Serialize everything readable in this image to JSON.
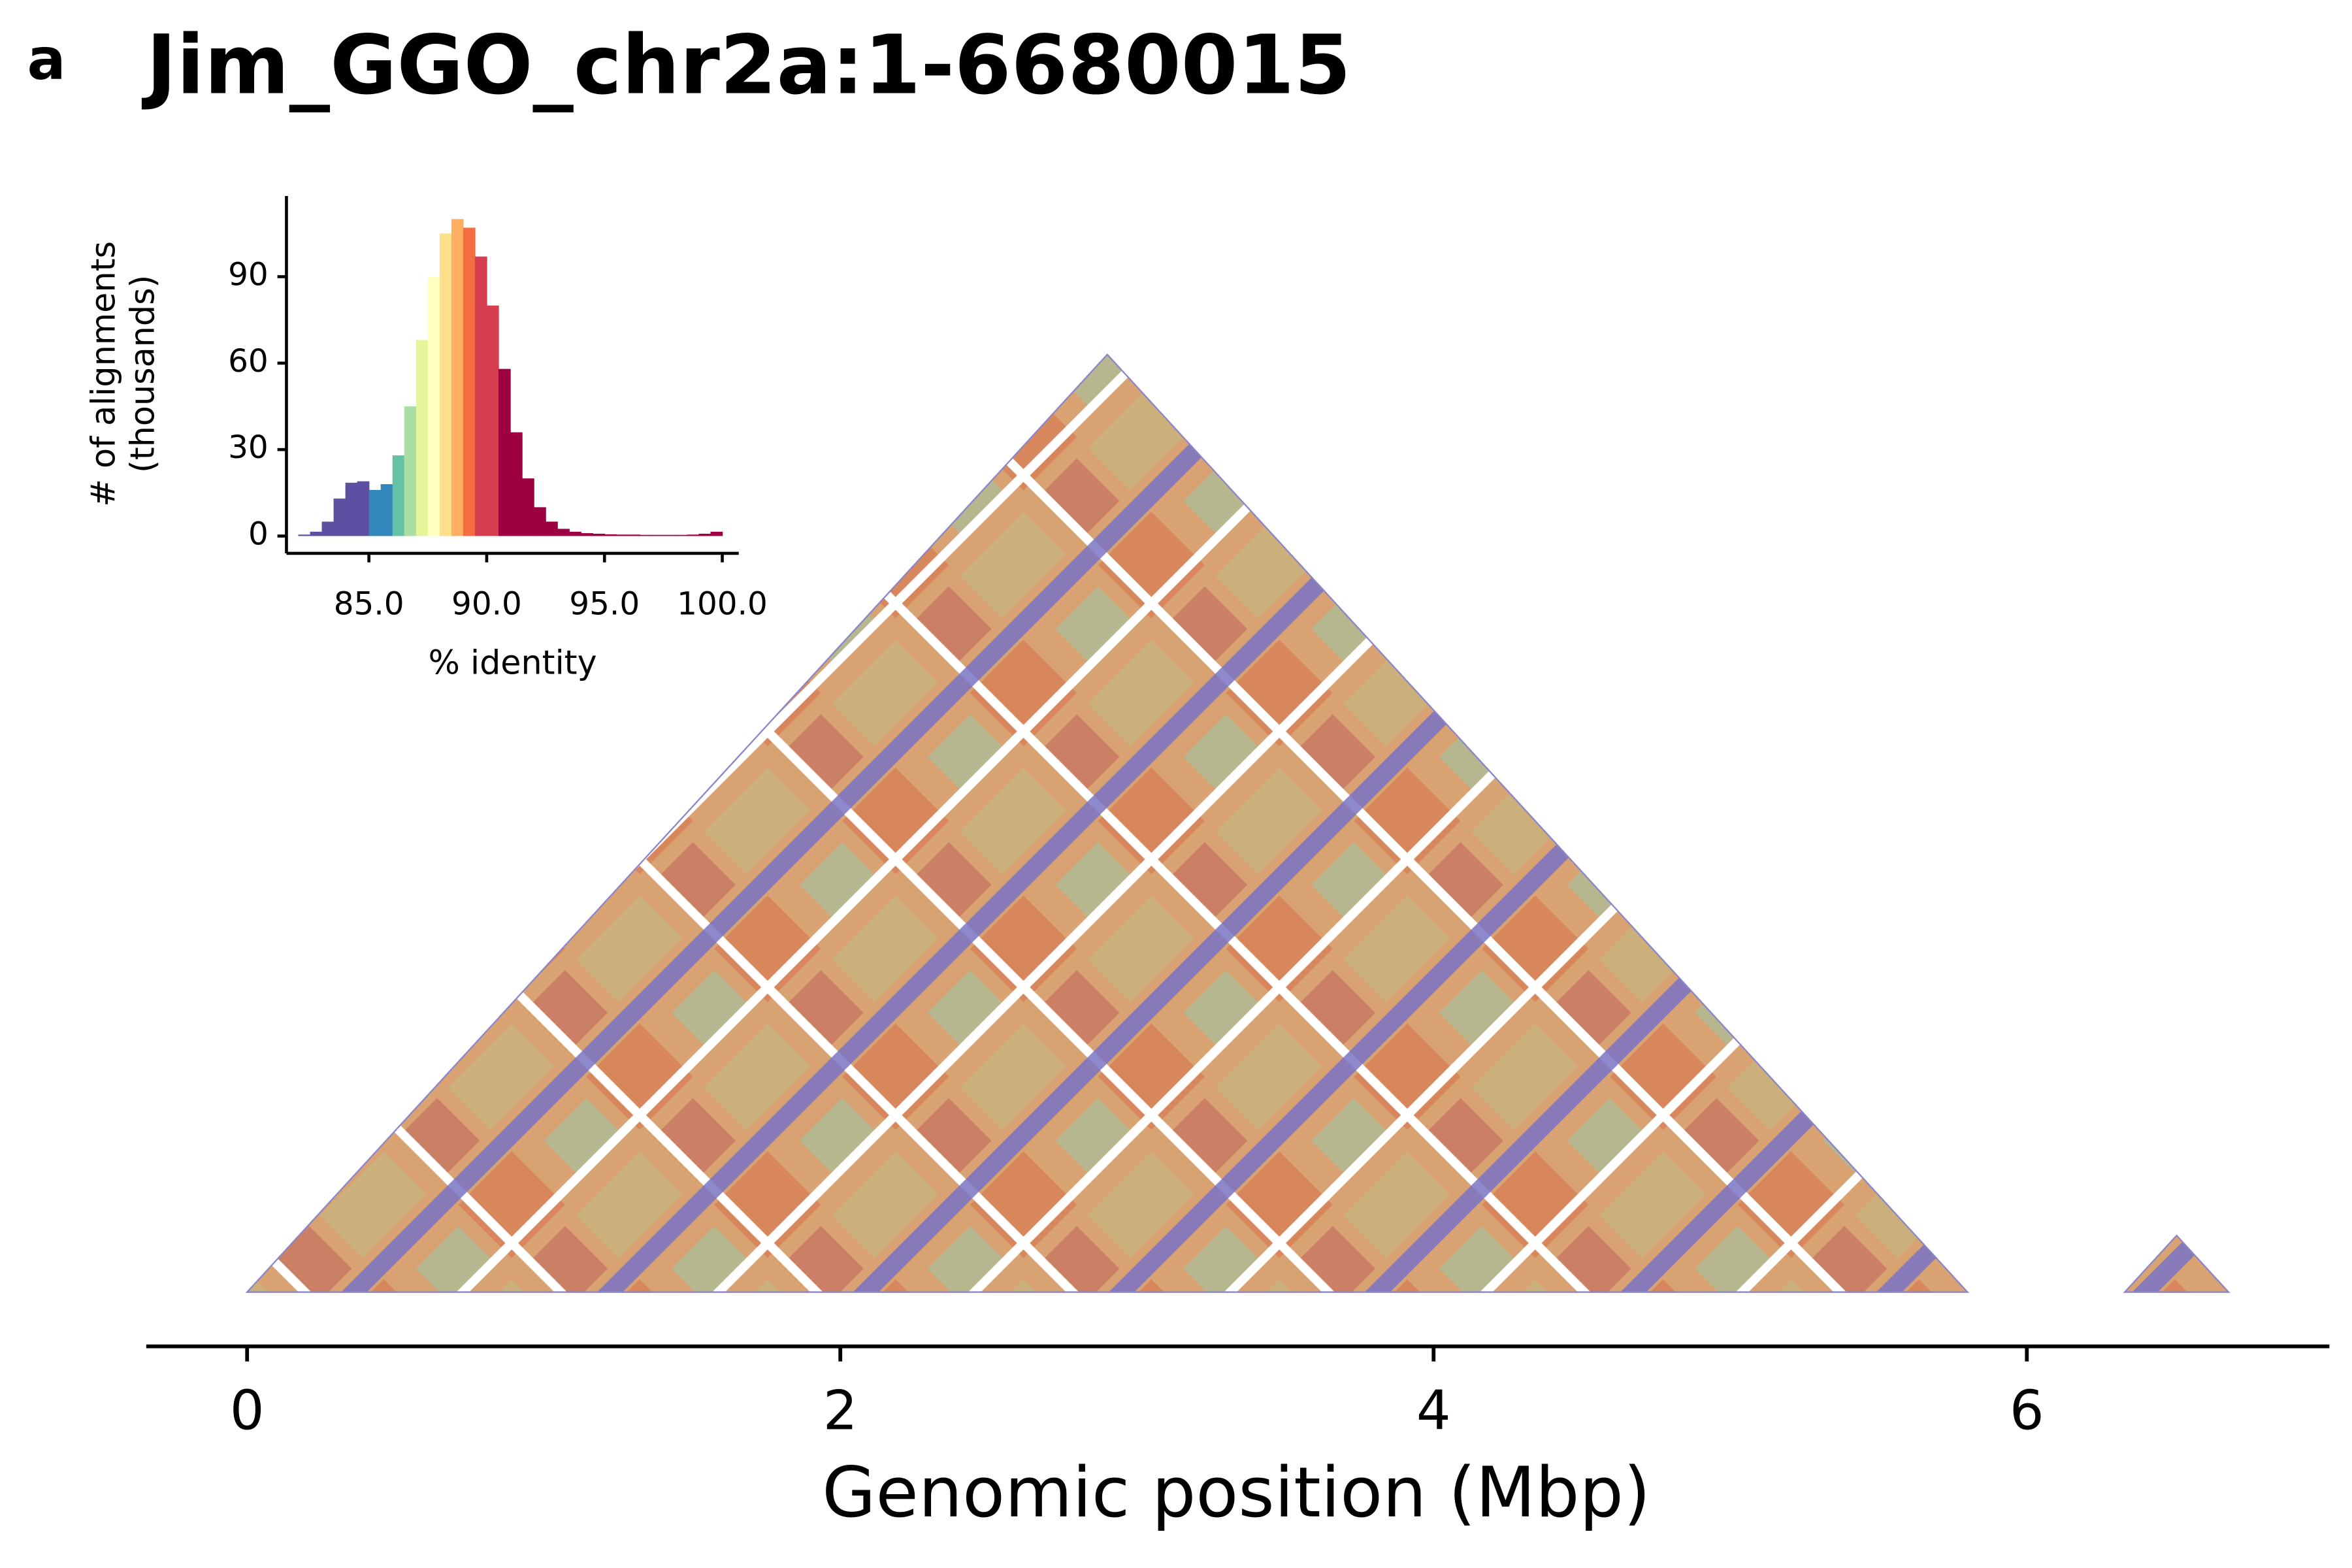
{
  "chart_data": [
    {
      "type": "dotplot",
      "panel_label": "a",
      "title": "Jim_GGO_chr2a:1-6680015",
      "xlabel": "Genomic position (Mbp)",
      "xlim": [
        -0.34,
        7.02
      ],
      "xticks": [
        0,
        2,
        4,
        6
      ],
      "regions": [
        [
          0,
          5.8
        ],
        [
          6.33,
          6.68
        ]
      ]
    },
    {
      "type": "histogram",
      "xlabel": "% identity",
      "ylabel": [
        "# of alignments",
        "(thousands)"
      ],
      "xlim": [
        81.5,
        100.7
      ],
      "ylim": [
        -6,
        118
      ],
      "xticks": [
        {
          "value": 85,
          "label": "85.0"
        },
        {
          "value": 90,
          "label": "90.0"
        },
        {
          "value": 95,
          "label": "95.0"
        },
        {
          "value": 100,
          "label": "100.0"
        }
      ],
      "yticks": [
        0,
        30,
        60,
        90
      ],
      "bins": [
        82,
        82.5,
        83,
        83.5,
        84,
        84.5,
        85,
        85.5,
        86,
        86.5,
        87,
        87.5,
        88,
        88.5,
        89,
        89.5,
        90,
        90.5,
        91,
        91.5,
        92,
        92.5,
        93,
        93.5,
        94,
        94.5,
        95,
        95.5,
        96,
        96.5,
        97,
        97.5,
        98,
        98.5,
        99,
        99.5,
        100
      ],
      "values": [
        0.5,
        1.5,
        5,
        13,
        18.5,
        19,
        16,
        18,
        28,
        45,
        68,
        90,
        105,
        110,
        107,
        97,
        80,
        58,
        36,
        20,
        10,
        5,
        2.5,
        1.5,
        1,
        0.8,
        0.6,
        0.5,
        0.5,
        0.4,
        0.4,
        0.4,
        0.4,
        0.5,
        0.8,
        1.5
      ],
      "colors": [
        "#5e4fa2",
        "#5e4fa2",
        "#5e4fa2",
        "#5e4fa2",
        "#5e4fa2",
        "#5e4fa2",
        "#3288bd",
        "#3288bd",
        "#66c2a5",
        "#abdda4",
        "#e6f598",
        "#ffffbf",
        "#fee08b",
        "#fdae61",
        "#f46d43",
        "#d53e4f",
        "#d53e4f",
        "#9e0142",
        "#9e0142",
        "#9e0142",
        "#9e0142",
        "#9e0142",
        "#9e0142",
        "#9e0142",
        "#9e0142",
        "#9e0142",
        "#9e0142",
        "#9e0142",
        "#9e0142",
        "#9e0142",
        "#9e0142",
        "#9e0142",
        "#9e0142",
        "#9e0142",
        "#9e0142",
        "#9e0142"
      ]
    }
  ]
}
